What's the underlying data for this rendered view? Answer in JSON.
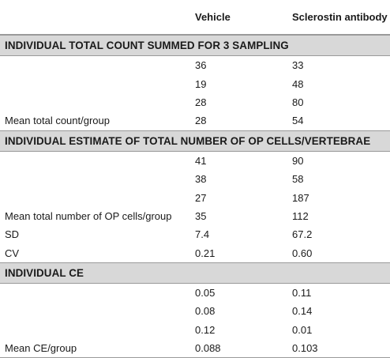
{
  "table": {
    "columns": [
      "",
      "Vehicle",
      "Sclerostin antibody"
    ],
    "sections": [
      {
        "title": "INDIVIDUAL TOTAL COUNT SUMMED FOR 3 SAMPLING",
        "rows": [
          [
            "",
            "36",
            "33"
          ],
          [
            "",
            "19",
            "48"
          ],
          [
            "",
            "28",
            "80"
          ],
          [
            "Mean total count/group",
            "28",
            "54"
          ]
        ]
      },
      {
        "title": "INDIVIDUAL ESTIMATE OF TOTAL NUMBER OF OP CELLS/VERTEBRAE",
        "rows": [
          [
            "",
            "41",
            "90"
          ],
          [
            "",
            "38",
            "58"
          ],
          [
            "",
            "27",
            "187"
          ],
          [
            "Mean total number of OP cells/group",
            "35",
            "112"
          ],
          [
            "SD",
            "7.4",
            "67.2"
          ],
          [
            "CV",
            "0.21",
            "0.60"
          ]
        ]
      },
      {
        "title": "INDIVIDUAL CE",
        "rows": [
          [
            "",
            "0.05",
            "0.11"
          ],
          [
            "",
            "0.08",
            "0.14"
          ],
          [
            "",
            "0.12",
            "0.01"
          ],
          [
            "Mean CE/group",
            "0.088",
            "0.103"
          ]
        ]
      }
    ]
  }
}
